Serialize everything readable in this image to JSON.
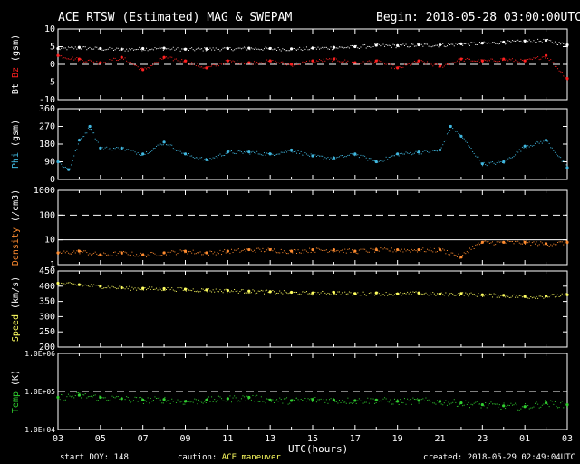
{
  "header": {
    "title": "ACE RTSW (Estimated) MAG & SWEPAM",
    "begin": "Begin: 2018-05-28 03:00:00UTC"
  },
  "footer": {
    "start_doy": "start DOY: 148",
    "caution_label": "caution:",
    "caution_value": "ACE maneuver",
    "created": "created: 2018-05-29 02:49:04UTC"
  },
  "colors": {
    "bt": "#ffffff",
    "bz": "#ff2020",
    "phi": "#40b8e0",
    "density": "#ff8c30",
    "speed": "#ffff60",
    "temp": "#30d030",
    "axis": "#ffffff",
    "background": "#000000"
  },
  "chart_data": {
    "type": "scatter",
    "xlabel": "UTC(hours)",
    "x_ticks": [
      "03",
      "05",
      "07",
      "09",
      "11",
      "13",
      "15",
      "17",
      "19",
      "21",
      "23",
      "01",
      "03"
    ],
    "xlim_hours": [
      0,
      24
    ],
    "panels": [
      {
        "ylabel_parts": [
          {
            "text": "Bt",
            "color": "#ffffff"
          },
          {
            "text": "Bz",
            "color": "#ff2020"
          },
          {
            "text": "(gsm)",
            "color": "#ffffff"
          }
        ],
        "ylim": [
          -10,
          10
        ],
        "scale": "linear",
        "yticks": [
          "-10",
          "-5",
          "0",
          "5",
          "10"
        ],
        "ytick_values": [
          -10,
          -5,
          0,
          5,
          10
        ],
        "dashed_lines": [
          0
        ],
        "series": [
          {
            "name": "Bt",
            "color": "#ffffff",
            "x": [
              0,
              1,
              2,
              3,
              4,
              5,
              6,
              7,
              8,
              9,
              10,
              11,
              12,
              13,
              14,
              15,
              16,
              17,
              18,
              19,
              20,
              21,
              22,
              23,
              24
            ],
            "y": [
              4.5,
              4.8,
              4.5,
              4.3,
              4.5,
              4.6,
              4.3,
              4.4,
              4.5,
              4.6,
              4.5,
              4.4,
              4.6,
              4.8,
              5.0,
              5.4,
              5.3,
              5.5,
              5.5,
              5.8,
              6.0,
              6.3,
              6.6,
              6.8,
              5.5
            ]
          },
          {
            "name": "Bz",
            "color": "#ff2020",
            "x": [
              0,
              1,
              2,
              3,
              4,
              5,
              6,
              7,
              8,
              9,
              10,
              11,
              12,
              13,
              14,
              15,
              16,
              17,
              18,
              19,
              20,
              21,
              22,
              23,
              24
            ],
            "y": [
              2.5,
              1.5,
              0.5,
              2.0,
              -1.5,
              2.0,
              1.0,
              -1.0,
              1.0,
              0.5,
              1.0,
              0.0,
              1.0,
              1.5,
              0.5,
              1.0,
              -1.0,
              1.0,
              -0.5,
              1.5,
              1.0,
              1.5,
              1.0,
              2.5,
              -4.0
            ]
          }
        ]
      },
      {
        "ylabel_parts": [
          {
            "text": "Phi",
            "color": "#40b8e0"
          },
          {
            "text": "(gsm)",
            "color": "#ffffff"
          }
        ],
        "ylim": [
          0,
          360
        ],
        "scale": "linear",
        "yticks": [
          "0",
          "90",
          "180",
          "270",
          "360"
        ],
        "ytick_values": [
          0,
          90,
          180,
          270,
          360
        ],
        "dashed_lines": [],
        "series": [
          {
            "name": "Phi",
            "color": "#40b8e0",
            "x": [
              0,
              0.5,
              1,
              1.5,
              2,
              3,
              4,
              5,
              6,
              7,
              8,
              9,
              10,
              11,
              12,
              13,
              14,
              15,
              16,
              17,
              18,
              18.5,
              19,
              20,
              21,
              22,
              23,
              24
            ],
            "y": [
              90,
              50,
              200,
              270,
              160,
              160,
              130,
              190,
              130,
              100,
              140,
              140,
              130,
              150,
              120,
              110,
              130,
              90,
              130,
              140,
              150,
              270,
              220,
              80,
              90,
              170,
              200,
              60
            ]
          }
        ]
      },
      {
        "ylabel_parts": [
          {
            "text": "Density",
            "color": "#ff8c30"
          },
          {
            "text": "(/cm3)",
            "color": "#ffffff"
          }
        ],
        "ylim": [
          1,
          1000
        ],
        "scale": "log",
        "yticks": [
          "1",
          "10",
          "100",
          "1000"
        ],
        "ytick_values": [
          1,
          10,
          100,
          1000
        ],
        "dashed_lines": [
          100
        ],
        "solid_lines": [
          10
        ],
        "series": [
          {
            "name": "Density",
            "color": "#ff8c30",
            "x": [
              0,
              1,
              2,
              3,
              4,
              5,
              6,
              7,
              8,
              9,
              10,
              11,
              12,
              13,
              14,
              15,
              16,
              17,
              18,
              19,
              20,
              21,
              22,
              23,
              24
            ],
            "y": [
              3.0,
              3.5,
              2.5,
              3.0,
              2.5,
              3.0,
              3.5,
              3.0,
              3.5,
              4.0,
              4.0,
              3.5,
              4.0,
              4.0,
              3.5,
              4.0,
              4.0,
              4.0,
              4.0,
              2.0,
              8.0,
              8.0,
              8.0,
              7.0,
              8.0
            ]
          }
        ]
      },
      {
        "ylabel_parts": [
          {
            "text": "Speed",
            "color": "#ffff60"
          },
          {
            "text": "(km/s)",
            "color": "#ffffff"
          }
        ],
        "ylim": [
          200,
          450
        ],
        "scale": "linear",
        "yticks": [
          "200",
          "250",
          "300",
          "350",
          "400",
          "450"
        ],
        "ytick_values": [
          200,
          250,
          300,
          350,
          400,
          450
        ],
        "dashed_lines": [],
        "series": [
          {
            "name": "Speed",
            "color": "#ffff60",
            "x": [
              0,
              1,
              2,
              3,
              4,
              5,
              6,
              7,
              8,
              9,
              10,
              11,
              12,
              13,
              14,
              15,
              16,
              17,
              18,
              19,
              20,
              21,
              22,
              23,
              24
            ],
            "y": [
              410,
              405,
              400,
              395,
              393,
              392,
              390,
              388,
              386,
              384,
              382,
              380,
              378,
              380,
              376,
              378,
              375,
              378,
              374,
              376,
              372,
              370,
              366,
              368,
              372
            ]
          }
        ]
      },
      {
        "ylabel_parts": [
          {
            "text": "Temp",
            "color": "#30d030"
          },
          {
            "text": "(K)",
            "color": "#ffffff"
          }
        ],
        "ylim": [
          10000,
          1000000
        ],
        "scale": "log",
        "yticks": [
          "1.0E+04",
          "1.0E+05",
          "1.0E+06"
        ],
        "ytick_values": [
          10000,
          100000,
          1000000
        ],
        "dashed_lines": [
          100000
        ],
        "series": [
          {
            "name": "Temp",
            "color": "#30d030",
            "x": [
              0,
              1,
              2,
              3,
              4,
              5,
              6,
              7,
              8,
              9,
              10,
              11,
              12,
              13,
              14,
              15,
              16,
              17,
              18,
              19,
              20,
              21,
              22,
              23,
              24
            ],
            "y": [
              70000,
              80000,
              70000,
              65000,
              60000,
              62000,
              55000,
              60000,
              65000,
              70000,
              60000,
              58000,
              62000,
              60000,
              58000,
              60000,
              55000,
              58000,
              55000,
              50000,
              45000,
              42000,
              40000,
              50000,
              45000
            ]
          }
        ]
      }
    ]
  }
}
